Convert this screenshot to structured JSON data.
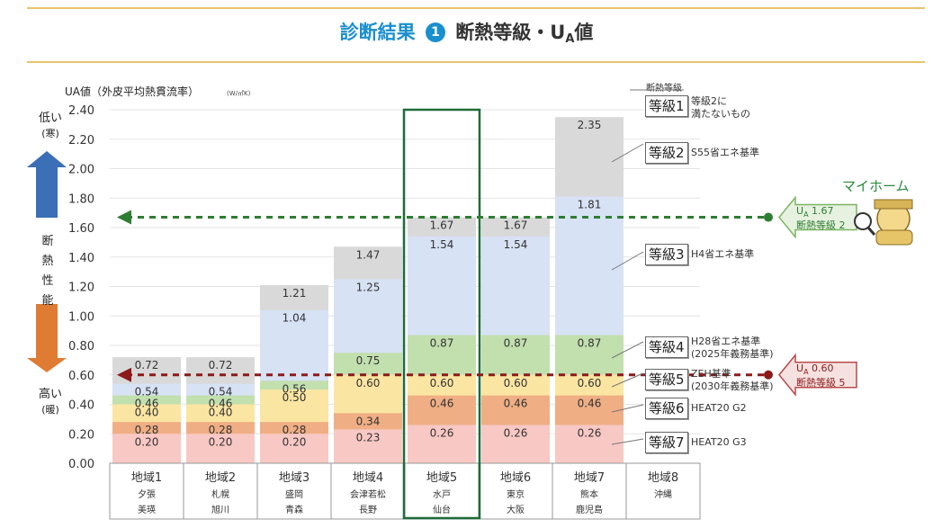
{
  "header": {
    "title_blue": "診断結果",
    "title_num": "1",
    "title_main": "断熱等級・U",
    "title_sub": "A",
    "title_tail": "値"
  },
  "colors": {
    "accent_blue": "#1a8fce",
    "gold_rule": "#e8c46a",
    "highlight_green": "#1e6b3a",
    "myhome_green": "#2e7d32",
    "target_red": "#8b1a1a"
  },
  "left_labels": {
    "low": "低い",
    "low_paren": "(寒)",
    "high": "高い",
    "high_paren": "(暖)",
    "performance": [
      "断",
      "熱",
      "性",
      "能"
    ]
  },
  "chart_data": {
    "type": "bar",
    "ylabel": "UA値（外皮平均熱貫流率）",
    "yunit": "(W/㎡K)",
    "ylim": [
      0,
      2.4
    ],
    "yticks": [
      "0.00",
      "0.20",
      "0.40",
      "0.60",
      "0.80",
      "1.00",
      "1.20",
      "1.40",
      "1.60",
      "1.80",
      "2.00",
      "2.20",
      "2.40"
    ],
    "grid": true,
    "categories": [
      {
        "name": "地域1",
        "cities": [
          "夕張",
          "美瑛"
        ]
      },
      {
        "name": "地域2",
        "cities": [
          "札幌",
          "旭川"
        ]
      },
      {
        "name": "地域3",
        "cities": [
          "盛岡",
          "青森"
        ]
      },
      {
        "name": "地域4",
        "cities": [
          "会津若松",
          "長野"
        ]
      },
      {
        "name": "地域5",
        "cities": [
          "水戸",
          "仙台"
        ]
      },
      {
        "name": "地域6",
        "cities": [
          "東京",
          "大阪"
        ]
      },
      {
        "name": "地域7",
        "cities": [
          "熊本",
          "鹿児島"
        ]
      },
      {
        "name": "地域8",
        "cities": [
          "沖縄",
          ""
        ]
      }
    ],
    "series": [
      {
        "grade": 7,
        "color": "#f8c8c4",
        "values": [
          0.2,
          0.2,
          0.2,
          0.23,
          0.26,
          0.26,
          0.26,
          null
        ]
      },
      {
        "grade": 6,
        "color": "#efae84",
        "values": [
          0.28,
          0.28,
          0.28,
          0.34,
          0.46,
          0.46,
          0.46,
          null
        ]
      },
      {
        "grade": 5,
        "color": "#fbe5a2",
        "values": [
          0.4,
          0.4,
          0.5,
          0.6,
          0.6,
          0.6,
          0.6,
          null
        ]
      },
      {
        "grade": 4,
        "color": "#c2dfae",
        "values": [
          0.46,
          0.46,
          0.56,
          0.75,
          0.87,
          0.87,
          0.87,
          null
        ]
      },
      {
        "grade": 3,
        "color": "#d7e2f4",
        "values": [
          0.54,
          0.54,
          1.04,
          1.25,
          1.54,
          1.54,
          1.81,
          null
        ]
      },
      {
        "grade": 2,
        "color": "#d9d9d9",
        "values": [
          0.72,
          0.72,
          1.21,
          1.47,
          1.67,
          1.67,
          2.35,
          null
        ]
      }
    ],
    "labels": [
      [
        "0.20",
        "0.28",
        "0.40",
        "0.46",
        "0.54",
        "0.72"
      ],
      [
        "0.20",
        "0.28",
        "0.40",
        "0.46",
        "0.54",
        "0.72"
      ],
      [
        "0.20",
        "0.28",
        "0.50",
        "0.56",
        "1.04",
        "1.21"
      ],
      [
        "0.23",
        "0.34",
        "0.60",
        "0.75",
        "1.25",
        "1.47"
      ],
      [
        "0.26",
        "0.46",
        "0.60",
        "0.87",
        "1.54",
        "1.67"
      ],
      [
        "0.26",
        "0.46",
        "0.60",
        "0.87",
        "1.54",
        "1.67"
      ],
      [
        "0.26",
        "0.46",
        "0.60",
        "0.87",
        "1.81",
        "2.35"
      ],
      []
    ],
    "highlight_category": "地域5",
    "reference_lines": [
      {
        "value": 1.67,
        "color": "#2e7d32",
        "label_u": "U",
        "label_sub": "A",
        "label_val": "1.67",
        "label_grade": "断熱等級 2"
      },
      {
        "value": 0.6,
        "color": "#8b1a1a",
        "label_u": "U",
        "label_sub": "A",
        "label_val": "0.60",
        "label_grade": "断熱等級 5"
      }
    ]
  },
  "legend": {
    "heading": "断熱等級",
    "grades": [
      {
        "box": "等級1",
        "text": "等級2に\n満たないもの",
        "color": "#333333"
      },
      {
        "box": "等級2",
        "text": "S55省エネ基準",
        "color": "#333333"
      },
      {
        "box": "等級3",
        "text": "H4省エネ基準",
        "color": "#2a4e8c"
      },
      {
        "box": "等級4",
        "text": "H28省エネ基準\n(2025年義務基準)",
        "color": "#3c7a2c"
      },
      {
        "box": "等級5",
        "text": "ZEH基準\n(2030年義務基準)",
        "color": "#b07a10"
      },
      {
        "box": "等級6",
        "text": "HEAT20 G2",
        "color": "#c2561c"
      },
      {
        "box": "等級7",
        "text": "HEAT20 G3",
        "color": "#d24a5a"
      }
    ]
  },
  "myhome_label": "マイホーム"
}
